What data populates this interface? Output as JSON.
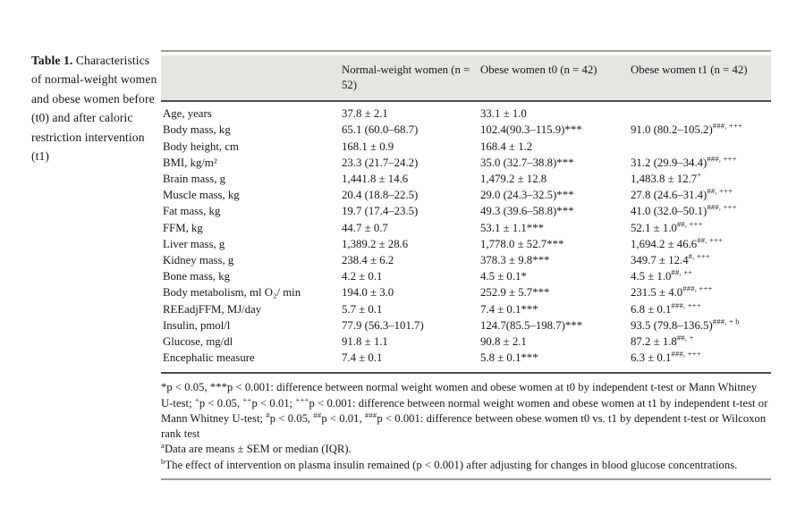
{
  "colors": {
    "header_bg": "#e5e5e2",
    "rule_dark": "#4c4c4a",
    "rule_gray": "#9b9b98"
  },
  "caption": {
    "label": "Table 1.",
    "text": " Characteristics of normal-weight women and obese women before (t0) and after caloric restriction intervention (t1)"
  },
  "table": {
    "headers": [
      "",
      "Normal-weight women (n = 52)",
      "Obese women t0 (n = 42)",
      "Obese women t1 (n = 42)"
    ],
    "rows": [
      {
        "label": "Age, years",
        "cells": [
          {
            "t": "37.8 ± 2.1"
          },
          {
            "t": "33.1 ± 1.0"
          },
          {
            "t": ""
          }
        ]
      },
      {
        "label": "Body mass, kg",
        "cells": [
          {
            "t": "65.1 (60.0–68.7)"
          },
          {
            "t": "102.4(90.3–115.9)***"
          },
          {
            "t": "91.0 (80.2–105.2)",
            "s": "###, +++"
          }
        ]
      },
      {
        "label": "Body height, cm",
        "cells": [
          {
            "t": "168.1 ± 0.9"
          },
          {
            "t": "168.4 ± 1.2"
          },
          {
            "t": ""
          }
        ]
      },
      {
        "label": "BMI, kg/m²",
        "cells": [
          {
            "t": "23.3 (21.7–24.2)"
          },
          {
            "t": "35.0 (32.7–38.8)***"
          },
          {
            "t": "31.2 (29.9–34.4)",
            "s": "###, +++"
          }
        ]
      },
      {
        "label": "Brain mass, g",
        "cells": [
          {
            "t": "1,441.8 ± 14.6"
          },
          {
            "t": "1,479.2 ± 12.8"
          },
          {
            "t": "1,483.8 ± 12.7",
            "s": "+"
          }
        ]
      },
      {
        "label": "Muscle mass, kg",
        "cells": [
          {
            "t": "20.4 (18.8–22.5)"
          },
          {
            "t": "29.0 (24.3–32.5)***"
          },
          {
            "t": "27.8 (24.6–31.4)",
            "s": "##, +++"
          }
        ]
      },
      {
        "label": "Fat mass, kg",
        "cells": [
          {
            "t": "19.7 (17.4–23.5)"
          },
          {
            "t": "49.3 (39.6–58.8)***"
          },
          {
            "t": "41.0 (32.0–50.1)",
            "s": "###, +++"
          }
        ]
      },
      {
        "label": "FFM, kg",
        "cells": [
          {
            "t": "44.7 ± 0.7"
          },
          {
            "t": "53.1 ± 1.1***"
          },
          {
            "t": "52.1 ± 1.0",
            "s": "##, +++"
          }
        ]
      },
      {
        "label": "Liver mass, g",
        "cells": [
          {
            "t": "1,389.2 ± 28.6"
          },
          {
            "t": "1,778.0 ± 52.7***"
          },
          {
            "t": "1,694.2 ± 46.6",
            "s": "##, +++"
          }
        ]
      },
      {
        "label": "Kidney mass, g",
        "cells": [
          {
            "t": "238.4 ± 6.2"
          },
          {
            "t": "378.3 ± 9.8***"
          },
          {
            "t": "349.7 ± 12.4",
            "s": "#, +++"
          }
        ]
      },
      {
        "label": "Bone mass, kg",
        "cells": [
          {
            "t": "4.2 ± 0.1"
          },
          {
            "t": "4.5 ± 0.1*"
          },
          {
            "t": "4.5 ± 1.0",
            "s": "##, ++"
          }
        ]
      },
      {
        "label": "Body metabolism, ml O₂/ min",
        "cells": [
          {
            "t": "194.0 ± 3.0"
          },
          {
            "t": "252.9 ± 5.7***"
          },
          {
            "t": "231.5 ± 4.0",
            "s": "###, +++"
          }
        ]
      },
      {
        "label": "REEadjFFM, MJ/day",
        "cells": [
          {
            "t": "5.7 ± 0.1"
          },
          {
            "t": "7.4 ± 0.1***"
          },
          {
            "t": "6.8 ± 0.1",
            "s": "###, +++"
          }
        ]
      },
      {
        "label": "Insulin, pmol/l",
        "cells": [
          {
            "t": "77.9 (56.3–101.7)"
          },
          {
            "t": "124.7(85.5–198.7)***"
          },
          {
            "t": "93.5 (79.8–136.5)",
            "s": "###, + b"
          }
        ]
      },
      {
        "label": "Glucose, mg/dl",
        "cells": [
          {
            "t": "91.8 ± 1.1"
          },
          {
            "t": "90.8 ± 2.1"
          },
          {
            "t": "87.2 ± 1.8",
            "s": "##, +"
          }
        ]
      },
      {
        "label": "Encephalic measure",
        "cells": [
          {
            "t": "7.4 ± 0.1"
          },
          {
            "t": "5.8 ± 0.1***"
          },
          {
            "t": "6.3 ± 0.1",
            "s": "###, +++"
          }
        ]
      }
    ]
  },
  "footnotes": [
    [
      {
        "t": "*p < 0.05, ***p < 0.001: difference between normal weight women and obese women at t0 by independent t-test or Mann Whitney U-test; "
      },
      {
        "s": "+"
      },
      {
        "t": "p < 0.05, "
      },
      {
        "s": "++"
      },
      {
        "t": "p < 0.01; "
      },
      {
        "s": "+++"
      },
      {
        "t": "p < 0.001: difference between normal weight women and obese women at t1 by independent t-test or Mann Whitney U-test; "
      },
      {
        "s": "#"
      },
      {
        "t": "p < 0.05, "
      },
      {
        "s": "##"
      },
      {
        "t": "p < 0.01, "
      },
      {
        "s": "###"
      },
      {
        "t": "p < 0.001: difference between obese women t0 vs. t1 by dependent t-test or Wilcoxon rank test"
      }
    ],
    [
      {
        "s": "a"
      },
      {
        "t": "Data are means ± SEM or median (IQR)."
      }
    ],
    [
      {
        "s": "b"
      },
      {
        "t": "The effect of intervention on plasma insulin remained (p < 0.001) after adjusting for changes in blood glucose concentrations."
      }
    ]
  ]
}
